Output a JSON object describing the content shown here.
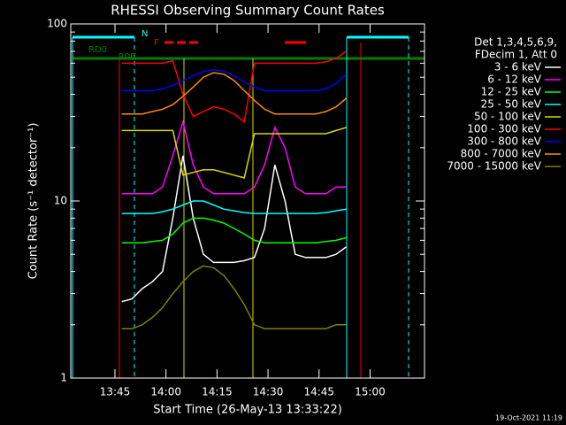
{
  "chart_data": {
    "type": "line",
    "title": "RHESSI Observing Summary Count Rates",
    "xlabel": "Start Time (26-May-13 13:33:22)",
    "ylabel": "Count Rate (s⁻¹ detector⁻¹)",
    "footer": "19-Oct-2021 11:19",
    "legend_title": [
      "Det 1,3,4,5,6,9,",
      "FDecim 1, Att 0"
    ],
    "annotations": [
      "N",
      "F",
      "RD0",
      "RDB"
    ],
    "yscale": "log",
    "ylim": [
      1,
      100
    ],
    "yticks": [
      1,
      10,
      100
    ],
    "yminor": [
      2,
      3,
      4,
      5,
      6,
      7,
      8,
      9,
      20,
      30,
      40,
      50,
      60,
      70,
      80,
      90
    ],
    "xlim": [
      "13:32",
      "15:16"
    ],
    "xticks": [
      "13:45",
      "14:00",
      "14:15",
      "14:30",
      "14:45",
      "15:00"
    ],
    "x": [
      "13:47",
      "13:50",
      "13:53",
      "13:56",
      "13:59",
      "14:02",
      "14:05",
      "14:08",
      "14:11",
      "14:14",
      "14:17",
      "14:20",
      "14:23",
      "14:26",
      "14:29",
      "14:32",
      "14:35",
      "14:38",
      "14:41",
      "14:44",
      "14:47",
      "14:50",
      "14:53"
    ],
    "series": [
      {
        "name": "3 - 6 keV",
        "color": "#ffffff",
        "values": [
          2.7,
          2.8,
          3.2,
          3.5,
          4,
          8,
          18,
          8,
          5,
          4.5,
          4.5,
          4.5,
          4.6,
          4.8,
          7,
          16,
          10,
          5,
          4.8,
          4.8,
          4.8,
          5,
          5.5
        ]
      },
      {
        "name": "6 - 12 keV",
        "color": "#ff00ff",
        "values": [
          11,
          11,
          11,
          11,
          12,
          18,
          28,
          16,
          12,
          11,
          11,
          11,
          11,
          12,
          16,
          26,
          20,
          12,
          11,
          11,
          11,
          12,
          12
        ]
      },
      {
        "name": "12 - 25 keV",
        "color": "#00ff00",
        "values": [
          5.8,
          5.8,
          5.8,
          5.9,
          6,
          6.5,
          7.5,
          8,
          8,
          7.8,
          7.5,
          7,
          6.5,
          6,
          5.8,
          5.8,
          5.8,
          5.8,
          5.8,
          5.8,
          5.9,
          6,
          6.2
        ]
      },
      {
        "name": "25 - 50 keV",
        "color": "#00ffff",
        "values": [
          8.5,
          8.5,
          8.5,
          8.5,
          8.7,
          9,
          9.5,
          10,
          10,
          9.5,
          9,
          8.8,
          8.6,
          8.5,
          8.5,
          8.5,
          8.5,
          8.5,
          8.5,
          8.5,
          8.6,
          8.8,
          9
        ]
      },
      {
        "name": "50 - 100 keV",
        "color": "#d8d800",
        "values": [
          25,
          25,
          25,
          25,
          25,
          25,
          14,
          14.5,
          15,
          15,
          14.5,
          14,
          13.5,
          24,
          24,
          24,
          24,
          24,
          24,
          24,
          24,
          25,
          26
        ]
      },
      {
        "name": "100 - 300 keV",
        "color": "#ff0000",
        "values": [
          60,
          60,
          60,
          60,
          60,
          62,
          40,
          30,
          32,
          34,
          33,
          31,
          28,
          60,
          60,
          60,
          60,
          60,
          60,
          60,
          61,
          64,
          70
        ]
      },
      {
        "name": "300 - 800 keV",
        "color": "#0000ff",
        "values": [
          42,
          42,
          42,
          42,
          43,
          45,
          48,
          51,
          54,
          55,
          54,
          51,
          47,
          44,
          42,
          42,
          42,
          42,
          42,
          42,
          43,
          46,
          52
        ]
      },
      {
        "name": "800 - 7000 keV",
        "color": "#ff8c00",
        "values": [
          31,
          31,
          31,
          32,
          33,
          35,
          39,
          44,
          50,
          53,
          52,
          48,
          42,
          37,
          33,
          31,
          31,
          31,
          31,
          31,
          32,
          34,
          38
        ]
      },
      {
        "name": "7000 - 15000 keV",
        "color": "#808000",
        "values": [
          1.9,
          1.9,
          2,
          2.2,
          2.5,
          3,
          3.5,
          4,
          4.3,
          4.2,
          3.8,
          3.2,
          2.6,
          2,
          1.9,
          1.9,
          1.9,
          1.9,
          1.9,
          1.9,
          1.9,
          2,
          2
        ]
      }
    ]
  }
}
